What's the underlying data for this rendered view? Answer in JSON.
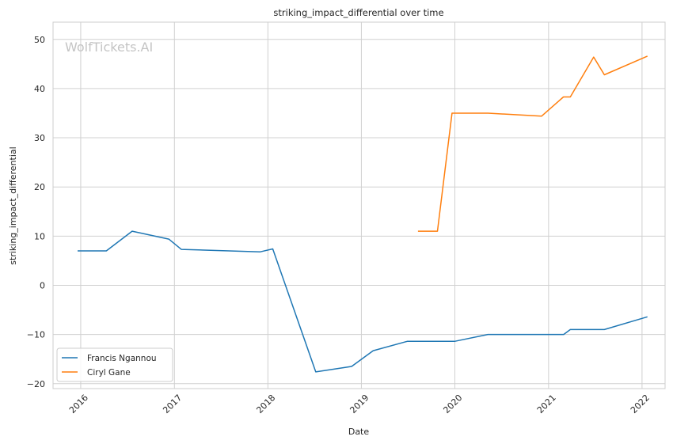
{
  "chart_data": {
    "type": "line",
    "title": "striking_impact_differential over time",
    "xlabel": "Date",
    "ylabel": "striking_impact_differential",
    "watermark": "WolfTickets.AI",
    "xlim": [
      "2015-09-15",
      "2022-04-01"
    ],
    "ylim": [
      -21,
      53.5
    ],
    "x_ticks": [
      "2016",
      "2017",
      "2018",
      "2019",
      "2020",
      "2021",
      "2022"
    ],
    "y_ticks": [
      -20,
      -10,
      0,
      10,
      20,
      30,
      40,
      50
    ],
    "grid": true,
    "legend_position": "lower-left",
    "series": [
      {
        "name": "Francis Ngannou",
        "color": "#1f77b4",
        "points": [
          [
            "2015-12-20",
            7.0
          ],
          [
            "2016-04-10",
            7.0
          ],
          [
            "2016-07-20",
            11.0
          ],
          [
            "2016-12-10",
            9.4
          ],
          [
            "2017-01-28",
            7.3
          ],
          [
            "2017-12-02",
            6.8
          ],
          [
            "2018-01-20",
            7.4
          ],
          [
            "2018-07-07",
            -17.6
          ],
          [
            "2018-11-24",
            -16.5
          ],
          [
            "2019-02-16",
            -13.3
          ],
          [
            "2019-06-29",
            -11.4
          ],
          [
            "2019-12-31",
            -11.4
          ],
          [
            "2020-05-09",
            -10.0
          ],
          [
            "2021-03-01",
            -10.0
          ],
          [
            "2021-03-27",
            -9.0
          ],
          [
            "2021-08-07",
            -9.0
          ],
          [
            "2022-01-22",
            -6.4
          ]
        ]
      },
      {
        "name": "Ciryl Gane",
        "color": "#ff7f0e",
        "points": [
          [
            "2019-08-10",
            11.0
          ],
          [
            "2019-10-25",
            11.0
          ],
          [
            "2019-12-21",
            35.0
          ],
          [
            "2020-05-10",
            35.0
          ],
          [
            "2020-12-05",
            34.4
          ],
          [
            "2021-02-28",
            38.3
          ],
          [
            "2021-03-27",
            38.3
          ],
          [
            "2021-06-26",
            46.4
          ],
          [
            "2021-08-07",
            42.8
          ],
          [
            "2022-01-22",
            46.6
          ]
        ]
      }
    ]
  }
}
